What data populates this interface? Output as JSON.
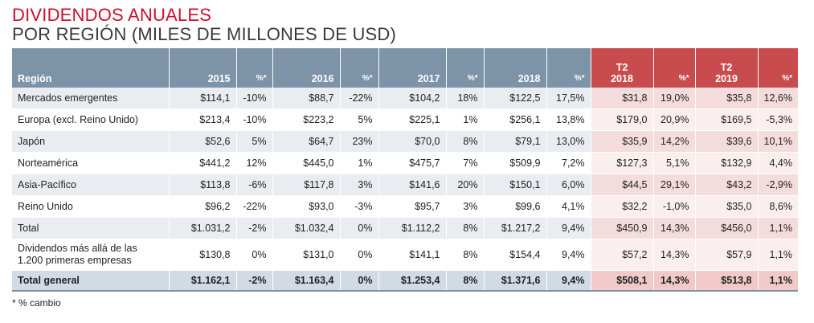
{
  "title": "DIVIDENDOS ANUALES",
  "subtitle": "POR REGIÓN (MILES DE MILLONES DE USD)",
  "headers": {
    "region": "Región",
    "y2015": "2015",
    "p2015": "%*",
    "y2016": "2016",
    "p2016": "%*",
    "y2017": "2017",
    "p2017": "%*",
    "y2018": "2018",
    "p2018": "%*",
    "t2_2018_line1": "T2",
    "t2_2018_line2": "2018",
    "pt2_2018": "%*",
    "t2_2019_line1": "T2",
    "t2_2019_line2": "2019",
    "pt2_2019": "%*"
  },
  "rows": [
    {
      "region": "Mercados emergentes",
      "v2015": "$114,1",
      "p2015": "-10%",
      "v2016": "$88,7",
      "p2016": "-22%",
      "v2017": "$104,2",
      "p2017": "18%",
      "v2018": "$122,5",
      "p2018": "17,5%",
      "t2018": "$31,8",
      "pt2018": "19,0%",
      "t2019": "$35,8",
      "pt2019": "12,6%"
    },
    {
      "region": "Europa (excl. Reino Unido)",
      "v2015": "$213,4",
      "p2015": "-10%",
      "v2016": "$223,2",
      "p2016": "5%",
      "v2017": "$225,1",
      "p2017": "1%",
      "v2018": "$256,1",
      "p2018": "13,8%",
      "t2018": "$179,0",
      "pt2018": "20,9%",
      "t2019": "$169,5",
      "pt2019": "-5,3%"
    },
    {
      "region": "Japón",
      "v2015": "$52,6",
      "p2015": "5%",
      "v2016": "$64,7",
      "p2016": "23%",
      "v2017": "$70,0",
      "p2017": "8%",
      "v2018": "$79,1",
      "p2018": "13,0%",
      "t2018": "$35,9",
      "pt2018": "14,2%",
      "t2019": "$39,6",
      "pt2019": "10,1%"
    },
    {
      "region": "Norteamérica",
      "v2015": "$441,2",
      "p2015": "12%",
      "v2016": "$445,0",
      "p2016": "1%",
      "v2017": "$475,7",
      "p2017": "7%",
      "v2018": "$509,9",
      "p2018": "7,2%",
      "t2018": "$127,3",
      "pt2018": "5,1%",
      "t2019": "$132,9",
      "pt2019": "4,4%"
    },
    {
      "region": "Asia-Pacífico",
      "v2015": "$113,8",
      "p2015": "-6%",
      "v2016": "$117,8",
      "p2016": "3%",
      "v2017": "$141,6",
      "p2017": "20%",
      "v2018": "$150,1",
      "p2018": "6,0%",
      "t2018": "$44,5",
      "pt2018": "29,1%",
      "t2019": "$43,2",
      "pt2019": "-2,9%"
    },
    {
      "region": "Reino Unido",
      "v2015": "$96,2",
      "p2015": "-22%",
      "v2016": "$93,0",
      "p2016": "-3%",
      "v2017": "$95,7",
      "p2017": "3%",
      "v2018": "$99,6",
      "p2018": "4,1%",
      "t2018": "$32,2",
      "pt2018": "-1,0%",
      "t2019": "$35,0",
      "pt2019": "8,6%"
    },
    {
      "region": "Total",
      "v2015": "$1.031,2",
      "p2015": "-2%",
      "v2016": "$1.032,4",
      "p2016": "0%",
      "v2017": "$1.112,2",
      "p2017": "8%",
      "v2018": "$1.217,2",
      "p2018": "9,4%",
      "t2018": "$450,9",
      "pt2018": "14,3%",
      "t2019": "$456,0",
      "pt2019": "1,1%"
    },
    {
      "region": "Dividendos más allá de las 1.200 primeras empresas",
      "v2015": "$130,8",
      "p2015": "0%",
      "v2016": "$131,0",
      "p2016": "0%",
      "v2017": "$141,1",
      "p2017": "8%",
      "v2018": "$154,4",
      "p2018": "9,4%",
      "t2018": "$57,2",
      "pt2018": "14,3%",
      "t2019": "$57,9",
      "pt2019": "1,1%"
    },
    {
      "region": "Total general",
      "v2015": "$1.162,1",
      "p2015": "-2%",
      "v2016": "$1.163,4",
      "p2016": "0%",
      "v2017": "$1.253,4",
      "p2017": "8%",
      "v2018": "$1.371,6",
      "p2018": "9,4%",
      "t2018": "$508,1",
      "pt2018": "14,3%",
      "t2019": "$513,8",
      "pt2019": "1,1%"
    }
  ],
  "footnote": "* % cambio",
  "colors": {
    "title_red": "#c8102e",
    "header_blue": "#7d93a7",
    "header_red": "#c84c4d"
  }
}
